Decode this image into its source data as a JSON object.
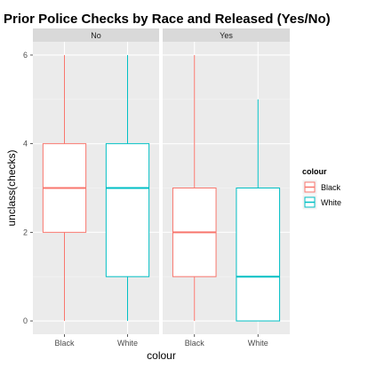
{
  "chart_data": {
    "type": "boxplot",
    "title": "Prior Police Checks by Race and Released (Yes/No)",
    "xlabel": "colour",
    "ylabel": "unclass(checks)",
    "ylim": [
      -0.3,
      6.3
    ],
    "yticks": [
      0,
      2,
      4,
      6
    ],
    "grid": true,
    "legend": {
      "title": "colour",
      "position": "right",
      "entries": [
        {
          "label": "Black",
          "color": "#F8766D"
        },
        {
          "label": "White",
          "color": "#00BFC4"
        }
      ]
    },
    "panels": [
      {
        "label": "No",
        "groups": [
          {
            "category": "Black",
            "color": "#F8766D",
            "min": 0,
            "q1": 2,
            "median": 3,
            "q3": 4,
            "max": 6
          },
          {
            "category": "White",
            "color": "#00BFC4",
            "min": 0,
            "q1": 1,
            "median": 3,
            "q3": 4,
            "max": 6
          }
        ]
      },
      {
        "label": "Yes",
        "groups": [
          {
            "category": "Black",
            "color": "#F8766D",
            "min": 0,
            "q1": 1,
            "median": 2,
            "q3": 3,
            "max": 6
          },
          {
            "category": "White",
            "color": "#00BFC4",
            "min": 0,
            "q1": 0,
            "median": 1,
            "q3": 3,
            "max": 5
          }
        ]
      }
    ]
  }
}
